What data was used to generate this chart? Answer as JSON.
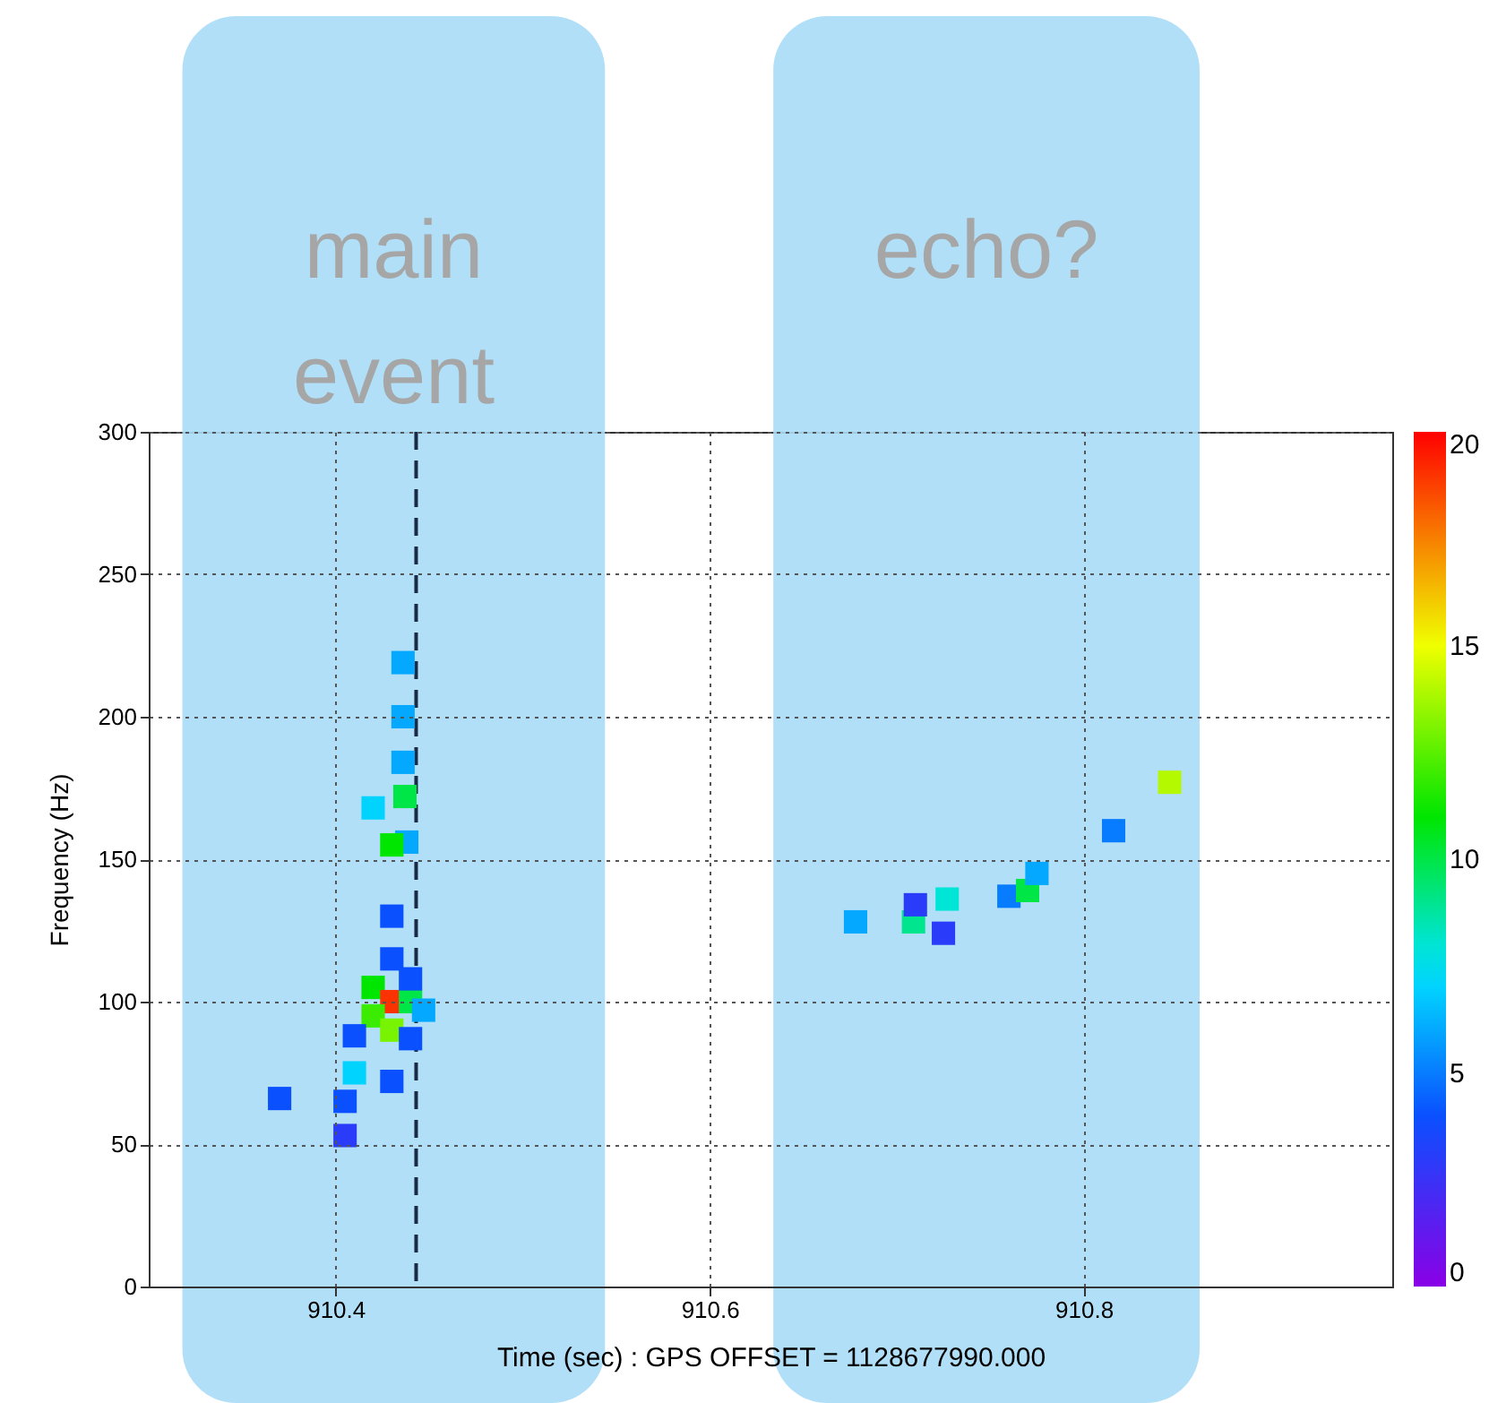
{
  "chart_data": {
    "type": "scatter",
    "xlabel": "Time (sec) : GPS OFFSET = 1128677990.000",
    "ylabel": "Frequency (Hz)",
    "xlim": [
      910.3,
      910.965
    ],
    "xticks": [
      910.4,
      910.6,
      910.8
    ],
    "ylim": [
      0,
      300
    ],
    "yticks": [
      0,
      50,
      100,
      150,
      200,
      250,
      300
    ],
    "grid": true,
    "marker": "square",
    "clim": [
      0,
      20
    ],
    "cticks": [
      0,
      5,
      10,
      15,
      20
    ],
    "x": [
      910.436,
      910.436,
      910.436,
      910.437,
      910.438,
      910.42,
      910.43,
      910.43,
      910.43,
      910.42,
      910.43,
      910.42,
      910.43,
      910.44,
      910.44,
      910.44,
      910.447,
      910.41,
      910.37,
      910.41,
      910.405,
      910.43,
      910.405,
      910.678,
      910.709,
      910.725,
      910.71,
      910.727,
      910.76,
      910.77,
      910.775,
      910.816,
      910.846
    ],
    "values": [
      219,
      200,
      184,
      172,
      156,
      168,
      155,
      130,
      115,
      105,
      100,
      95,
      90,
      100,
      108,
      87,
      97,
      88,
      66,
      75,
      65,
      72,
      53,
      128,
      128,
      124,
      134,
      136,
      137,
      139,
      145,
      160,
      177
    ],
    "cvalues": [
      6,
      6,
      6,
      10,
      6,
      7,
      11,
      4,
      4,
      11,
      19,
      12,
      13,
      10,
      4,
      4,
      6,
      4,
      4,
      7,
      4,
      4,
      3,
      6,
      9,
      3,
      3,
      8,
      5,
      10,
      6,
      5,
      14
    ],
    "bands": [
      {
        "axis": "x",
        "from": 910.318,
        "to": 910.544,
        "label": "main event",
        "color": "#a9dcf7"
      },
      {
        "axis": "x",
        "from": 910.634,
        "to": 910.862,
        "label": "echo?",
        "color": "#a9dcf7"
      }
    ],
    "ref_lines": [
      {
        "axis": "x",
        "value": 910.443,
        "label": null,
        "color": "#1a2a44",
        "line_style": "dashed"
      }
    ]
  }
}
